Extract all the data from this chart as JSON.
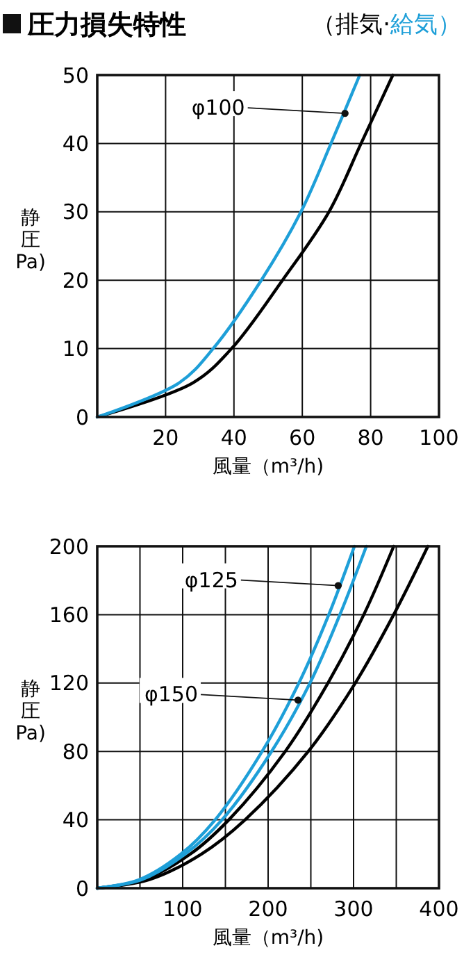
{
  "chart_data": [
    {
      "type": "line",
      "title": "圧力損失特性",
      "xlabel": "風量（m³/h)",
      "ylabel": "静圧Pa)",
      "legend": "top right",
      "grid": true,
      "xlim": [
        0,
        100
      ],
      "ylim": [
        0,
        50
      ],
      "xticks": [
        20,
        40,
        60,
        80,
        100
      ],
      "yticks": [
        0,
        10,
        20,
        30,
        40,
        50
      ],
      "series": [
        {
          "name": "（排気·",
          "color": "#000000",
          "x": [
            0,
            28,
            39.3,
            54.2,
            67.8,
            77.2,
            86.5
          ],
          "values": [
            0,
            5,
            10,
            20,
            30,
            40,
            50
          ]
        },
        {
          "name": "給気）",
          "color": "#1e9fd8",
          "x": [
            0,
            24,
            33.9,
            48,
            59.6,
            68.4,
            76.8
          ],
          "values": [
            0,
            5,
            10,
            20,
            30,
            40,
            50
          ]
        }
      ],
      "annotations": [
        {
          "text": "φ100",
          "x": 72.5,
          "y": 44.4
        }
      ]
    },
    {
      "type": "line",
      "xlabel": "風量（m³/h)",
      "ylabel": "静圧Pa)",
      "grid": true,
      "xlim": [
        0,
        400
      ],
      "ylim": [
        0,
        200
      ],
      "xticks": [
        {
          "value": 50,
          "label": null
        },
        100,
        {
          "value": 150,
          "label": null
        },
        200,
        {
          "value": 250,
          "label": null
        },
        300,
        {
          "value": 350,
          "label": null
        },
        400
      ],
      "yticks": [
        0,
        40,
        80,
        120,
        160,
        200
      ],
      "series": [
        {
          "color": "#000000",
          "x": [
            0,
            54,
            109,
            154,
            220,
            270,
            312,
            347
          ],
          "values": [
            0,
            5,
            20,
            40,
            80,
            120,
            160,
            200
          ]
        },
        {
          "color": "#000000",
          "x": [
            0,
            61,
            122,
            173,
            247,
            302,
            347,
            387
          ],
          "values": [
            0,
            5,
            20,
            40,
            80,
            120,
            160,
            200
          ]
        },
        {
          "color": "#1e9fd8",
          "x": [
            0,
            49,
            98,
            138,
            193,
            236,
            271,
            301
          ],
          "values": [
            0,
            5,
            20,
            40,
            80,
            120,
            160,
            200
          ]
        },
        {
          "color": "#1e9fd8",
          "x": [
            0,
            52,
            103,
            146,
            204,
            249,
            284,
            315
          ],
          "values": [
            0,
            5,
            20,
            40,
            80,
            120,
            160,
            200
          ]
        }
      ],
      "annotations": [
        {
          "text": "φ125",
          "x": 282,
          "y": 177
        },
        {
          "text": "φ150",
          "x": 235,
          "y": 110
        }
      ]
    }
  ]
}
